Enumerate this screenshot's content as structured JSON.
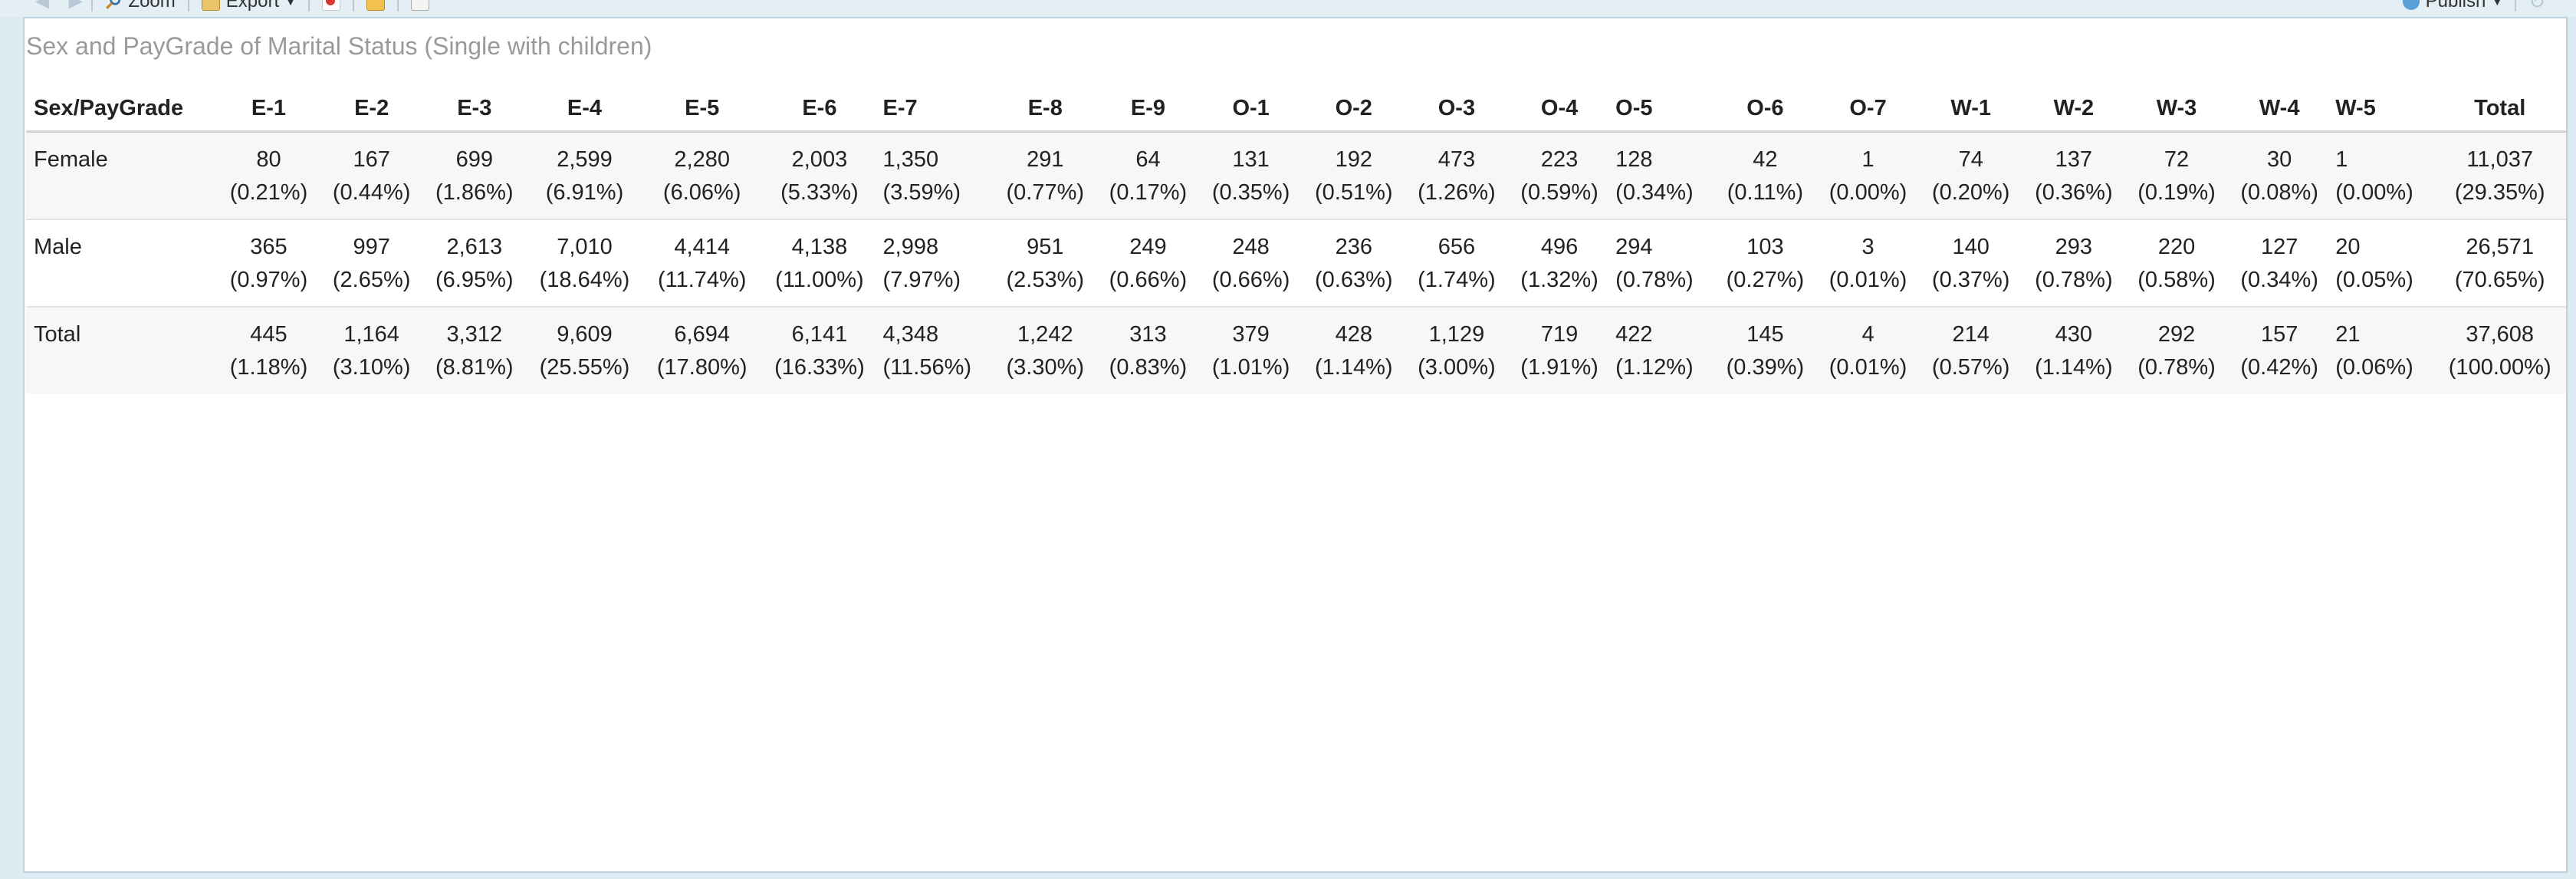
{
  "toolbar": {
    "zoom_label": "Zoom",
    "export_label": "Export",
    "publish_label": "Publish"
  },
  "title": "Sex and PayGrade of Marital Status (Single with children)",
  "table": {
    "corner_header": "Sex/PayGrade",
    "columns": [
      "E-1",
      "E-2",
      "E-3",
      "E-4",
      "E-5",
      "E-6",
      "E-7",
      "E-8",
      "E-9",
      "O-1",
      "O-2",
      "O-3",
      "O-4",
      "O-5",
      "O-6",
      "O-7",
      "W-1",
      "W-2",
      "W-3",
      "W-4",
      "W-5",
      "Total"
    ],
    "rows": [
      {
        "label": "Female",
        "counts": [
          "80",
          "167",
          "699",
          "2,599",
          "2,280",
          "2,003",
          "1,350",
          "291",
          "64",
          "131",
          "192",
          "473",
          "223",
          "128",
          "42",
          "1",
          "74",
          "137",
          "72",
          "30",
          "1",
          "11,037"
        ],
        "pcts": [
          "(0.21%)",
          "(0.44%)",
          "(1.86%)",
          "(6.91%)",
          "(6.06%)",
          "(5.33%)",
          "(3.59%)",
          "(0.77%)",
          "(0.17%)",
          "(0.35%)",
          "(0.51%)",
          "(1.26%)",
          "(0.59%)",
          "(0.34%)",
          "(0.11%)",
          "(0.00%)",
          "(0.20%)",
          "(0.36%)",
          "(0.19%)",
          "(0.08%)",
          "(0.00%)",
          "(29.35%)"
        ]
      },
      {
        "label": "Male",
        "counts": [
          "365",
          "997",
          "2,613",
          "7,010",
          "4,414",
          "4,138",
          "2,998",
          "951",
          "249",
          "248",
          "236",
          "656",
          "496",
          "294",
          "103",
          "3",
          "140",
          "293",
          "220",
          "127",
          "20",
          "26,571"
        ],
        "pcts": [
          "(0.97%)",
          "(2.65%)",
          "(6.95%)",
          "(18.64%)",
          "(11.74%)",
          "(11.00%)",
          "(7.97%)",
          "(2.53%)",
          "(0.66%)",
          "(0.66%)",
          "(0.63%)",
          "(1.74%)",
          "(1.32%)",
          "(0.78%)",
          "(0.27%)",
          "(0.01%)",
          "(0.37%)",
          "(0.78%)",
          "(0.58%)",
          "(0.34%)",
          "(0.05%)",
          "(70.65%)"
        ]
      },
      {
        "label": "Total",
        "counts": [
          "445",
          "1,164",
          "3,312",
          "9,609",
          "6,694",
          "6,141",
          "4,348",
          "1,242",
          "313",
          "379",
          "428",
          "1,129",
          "719",
          "422",
          "145",
          "4",
          "214",
          "430",
          "292",
          "157",
          "21",
          "37,608"
        ],
        "pcts": [
          "(1.18%)",
          "(3.10%)",
          "(8.81%)",
          "(25.55%)",
          "(17.80%)",
          "(16.33%)",
          "(11.56%)",
          "(3.30%)",
          "(0.83%)",
          "(1.01%)",
          "(1.14%)",
          "(3.00%)",
          "(1.91%)",
          "(1.12%)",
          "(0.39%)",
          "(0.01%)",
          "(0.57%)",
          "(1.14%)",
          "(0.78%)",
          "(0.42%)",
          "(0.06%)",
          "(100.00%)"
        ]
      }
    ]
  }
}
